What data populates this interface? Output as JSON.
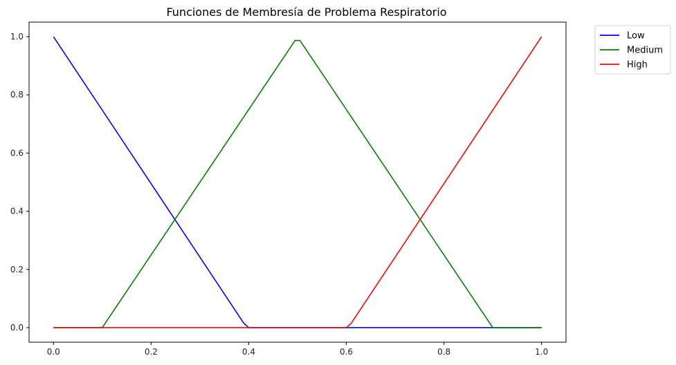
{
  "chart_data": {
    "type": "line",
    "title": "Funciones de Membresía de Problema Respiratorio",
    "xlabel": "",
    "ylabel": "",
    "xlim": [
      -0.05,
      1.05
    ],
    "ylim": [
      -0.05,
      1.05
    ],
    "xticks": [
      0.0,
      0.2,
      0.4,
      0.6,
      0.8,
      1.0
    ],
    "xtick_labels": [
      "0.0",
      "0.2",
      "0.4",
      "0.6",
      "0.8",
      "1.0"
    ],
    "yticks": [
      0.0,
      0.2,
      0.4,
      0.6,
      0.8,
      1.0
    ],
    "ytick_labels": [
      "0.0",
      "0.2",
      "0.4",
      "0.6",
      "0.8",
      "1.0"
    ],
    "grid": false,
    "legend_position": "outside top-right",
    "series": [
      {
        "name": "Low",
        "color": "#0000ff",
        "x": [
          0.0,
          0.39,
          0.4,
          1.0
        ],
        "y": [
          1.0,
          0.015,
          0.0,
          0.0
        ]
      },
      {
        "name": "Medium",
        "color": "#008000",
        "x": [
          0.0,
          0.1,
          0.495,
          0.505,
          0.9,
          1.0
        ],
        "y": [
          0.0,
          0.0,
          0.987,
          0.987,
          0.0,
          0.0
        ]
      },
      {
        "name": "High",
        "color": "#ff0000",
        "x": [
          0.0,
          0.6,
          0.61,
          1.0
        ],
        "y": [
          0.0,
          0.0,
          0.015,
          1.0
        ]
      }
    ]
  }
}
